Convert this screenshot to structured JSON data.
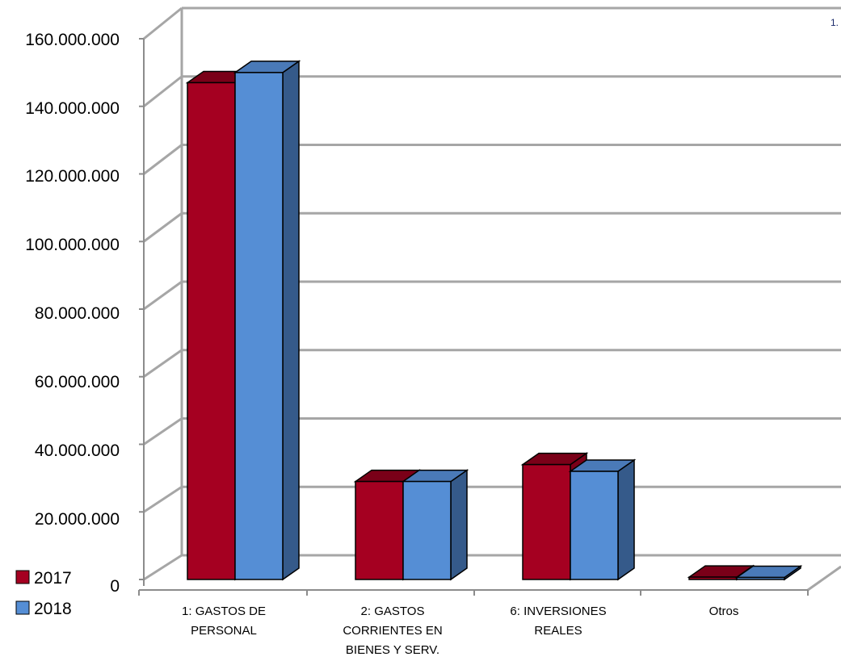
{
  "chart_data": {
    "type": "bar",
    "categories": [
      [
        "1: GASTOS DE",
        "PERSONAL"
      ],
      [
        "2: GASTOS",
        "CORRIENTES EN",
        "BIENES Y SERV."
      ],
      [
        "6: INVERSIONES",
        "REALES"
      ],
      [
        "Otros"
      ]
    ],
    "series": [
      {
        "name": "2017",
        "values": [
          147000000,
          29000000,
          34000000,
          700000
        ],
        "color": "#a50021",
        "top_color": "#7a0018"
      },
      {
        "name": "2018",
        "values": [
          150000000,
          29000000,
          32000000,
          600000
        ],
        "color": "#558ed5",
        "side_color": "#355a8a",
        "top_color": "#4a7ab8"
      }
    ],
    "ylim": [
      0,
      160000000
    ],
    "yticks": [
      "0",
      "20.000.000",
      "40.000.000",
      "60.000.000",
      "80.000.000",
      "100.000.000",
      "120.000.000",
      "140.000.000",
      "160.000.000"
    ],
    "grid": true,
    "legend": "bottom-left",
    "corner_label": "1."
  }
}
